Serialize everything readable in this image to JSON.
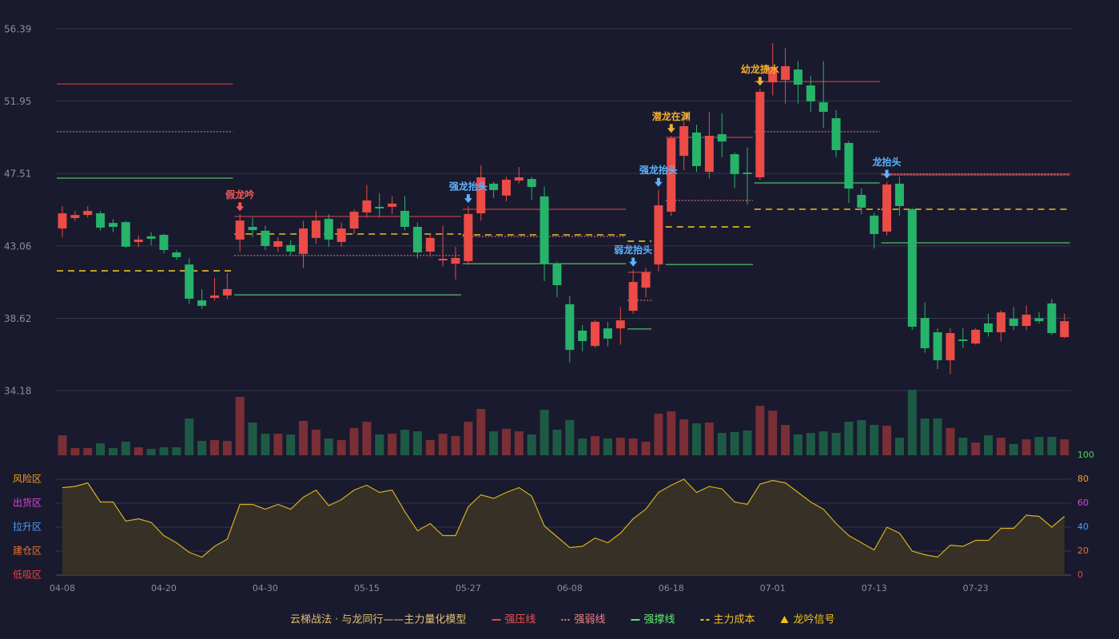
{
  "chart_data": [
    {
      "type": "candlestick",
      "ylim": [
        34.18,
        56.39
      ],
      "yticks": [
        56.39,
        51.95,
        47.51,
        43.06,
        38.62,
        34.18
      ],
      "grid": true,
      "up_color": "#ec4b46",
      "down_color": "#26b36a",
      "open": [
        44.13,
        44.77,
        44.96,
        45.06,
        44.47,
        44.52,
        43.3,
        43.65,
        43.74,
        42.66,
        41.92,
        39.72,
        39.87,
        40.02,
        43.45,
        44.23,
        43.99,
        43.01,
        43.11,
        42.57,
        43.55,
        44.72,
        43.3,
        44.13,
        45.12,
        45.46,
        45.46,
        45.21,
        44.23,
        42.71,
        42.17,
        41.97,
        42.12,
        45.06,
        46.88,
        46.15,
        47.07,
        47.17,
        46.1,
        41.97,
        39.48,
        37.86,
        36.92,
        38.0,
        38.0,
        39.08,
        40.5,
        41.92,
        45.16,
        48.59,
        50.02,
        47.61,
        49.92,
        48.69,
        47.56,
        47.27,
        53.1,
        53.25,
        53.89,
        52.91,
        51.88,
        50.9,
        49.38,
        46.19,
        44.92,
        43.94,
        46.88,
        45.31,
        38.64,
        37.76,
        36.04,
        37.32,
        37.07,
        38.3,
        37.76,
        38.59,
        38.15,
        38.62,
        39.53,
        37.46
      ],
      "high": [
        45.51,
        45.2,
        45.5,
        45.2,
        44.7,
        44.6,
        43.7,
        43.9,
        43.8,
        42.8,
        42.3,
        40.4,
        41.1,
        41.4,
        45.0,
        44.8,
        44.3,
        43.6,
        43.4,
        44.6,
        45.2,
        45.0,
        44.5,
        45.3,
        46.8,
        46.3,
        46.1,
        46.1,
        44.5,
        43.8,
        44.3,
        43.0,
        45.5,
        48.0,
        47.0,
        47.3,
        47.9,
        47.3,
        46.7,
        42.1,
        40.0,
        38.2,
        38.5,
        38.4,
        39.3,
        41.6,
        41.7,
        46.5,
        49.8,
        50.7,
        50.5,
        51.3,
        51.2,
        48.8,
        49.1,
        52.7,
        55.5,
        55.2,
        54.4,
        53.5,
        54.4,
        51.4,
        49.5,
        46.6,
        45.1,
        47.0,
        47.3,
        45.4,
        39.6,
        38.0,
        38.0,
        38.0,
        38.0,
        38.9,
        39.1,
        39.3,
        39.4,
        39.0,
        39.8,
        38.9
      ],
      "low": [
        43.59,
        44.6,
        44.8,
        44.0,
        43.9,
        42.95,
        43.0,
        43.1,
        42.6,
        42.2,
        39.5,
        39.2,
        39.7,
        39.8,
        42.7,
        43.6,
        42.8,
        42.7,
        42.5,
        41.7,
        43.2,
        43.0,
        43.0,
        43.8,
        44.8,
        44.8,
        45.0,
        44.0,
        42.3,
        42.4,
        41.8,
        41.0,
        41.9,
        44.6,
        46.0,
        45.8,
        46.9,
        45.9,
        40.9,
        39.9,
        35.9,
        36.6,
        36.8,
        36.9,
        37.0,
        38.9,
        39.9,
        41.5,
        44.9,
        47.7,
        47.6,
        47.2,
        48.5,
        46.6,
        45.6,
        47.1,
        52.3,
        51.8,
        51.8,
        51.3,
        50.3,
        48.5,
        45.7,
        45.0,
        42.9,
        43.7,
        44.9,
        37.9,
        36.5,
        35.5,
        35.2,
        36.8,
        37.0,
        37.5,
        37.2,
        37.9,
        37.9,
        38.3,
        37.6,
        37.4
      ],
      "close": [
        45.06,
        44.96,
        45.21,
        44.18,
        44.23,
        43.01,
        43.45,
        43.5,
        42.81,
        42.37,
        39.82,
        39.38,
        40.02,
        40.41,
        44.62,
        44.03,
        43.06,
        43.35,
        42.71,
        44.13,
        44.62,
        43.45,
        44.13,
        45.16,
        45.85,
        45.36,
        45.66,
        44.23,
        42.66,
        43.55,
        42.27,
        42.32,
        45.02,
        47.27,
        46.49,
        47.12,
        47.27,
        46.68,
        41.97,
        40.65,
        36.68,
        37.22,
        38.4,
        37.37,
        38.49,
        40.85,
        41.44,
        45.55,
        49.67,
        50.41,
        47.96,
        49.82,
        49.47,
        47.47,
        47.47,
        52.52,
        54.04,
        54.09,
        52.96,
        51.93,
        51.29,
        48.94,
        46.58,
        45.41,
        43.79,
        46.83,
        45.51,
        38.1,
        36.78,
        36.04,
        37.71,
        37.22,
        37.91,
        37.76,
        38.98,
        38.15,
        38.84,
        38.44,
        37.71,
        38.44
      ],
      "levels": [
        {
          "name": "强压线",
          "color": "#e04848",
          "text_color": "#f05050",
          "style": "solid",
          "segments": [
            {
              "start": 0,
              "end": 13,
              "value": 53.0
            },
            {
              "start": 14,
              "end": 31,
              "value": 44.87
            },
            {
              "start": 32,
              "end": 44,
              "value": 45.31
            },
            {
              "start": 45,
              "end": 46,
              "value": 41.44
            },
            {
              "start": 48,
              "end": 54,
              "value": 49.72
            },
            {
              "start": 55,
              "end": 64,
              "value": 53.15
            },
            {
              "start": 65,
              "end": 79,
              "value": 47.42
            }
          ]
        },
        {
          "name": "强弱线",
          "color": "#f08080",
          "text_color": "#f08080",
          "style": "dotted",
          "segments": [
            {
              "start": 0,
              "end": 13,
              "value": 50.07
            },
            {
              "start": 14,
              "end": 31,
              "value": 42.47
            },
            {
              "start": 32,
              "end": 44,
              "value": 43.64
            },
            {
              "start": 45,
              "end": 46,
              "value": 39.72
            },
            {
              "start": 48,
              "end": 54,
              "value": 45.85
            },
            {
              "start": 55,
              "end": 64,
              "value": 50.07
            },
            {
              "start": 65,
              "end": 79,
              "value": 47.47
            }
          ]
        },
        {
          "name": "强撑线",
          "color": "#5be870",
          "text_color": "#60f070",
          "style": "solid",
          "segments": [
            {
              "start": 0,
              "end": 13,
              "value": 47.22
            },
            {
              "start": 14,
              "end": 31,
              "value": 40.06
            },
            {
              "start": 32,
              "end": 44,
              "value": 41.97
            },
            {
              "start": 45,
              "end": 46,
              "value": 37.96
            },
            {
              "start": 48,
              "end": 54,
              "value": 41.92
            },
            {
              "start": 55,
              "end": 64,
              "value": 46.93
            },
            {
              "start": 65,
              "end": 79,
              "value": 43.25
            }
          ]
        },
        {
          "name": "主力成本",
          "color": "#e8c020",
          "text_color": "#f0c020",
          "style": "dashed",
          "segments": [
            {
              "start": 0,
              "end": 13,
              "value": 41.53
            },
            {
              "start": 14,
              "end": 31,
              "value": 43.79
            },
            {
              "start": 32,
              "end": 44,
              "value": 43.74
            },
            {
              "start": 45,
              "end": 46,
              "value": 43.35
            },
            {
              "start": 48,
              "end": 54,
              "value": 44.23
            },
            {
              "start": 55,
              "end": 64,
              "value": 45.31
            },
            {
              "start": 65,
              "end": 79,
              "value": 45.31
            }
          ]
        }
      ],
      "annotations": [
        {
          "text": "假龙吟",
          "index": 14,
          "color": "#f05a5a"
        },
        {
          "text": "强龙抬头",
          "index": 32,
          "color": "#5ab4ff"
        },
        {
          "text": "弱龙抬头",
          "index": 45,
          "color": "#5ab4ff"
        },
        {
          "text": "强龙抬头",
          "index": 47,
          "color": "#5ab4ff"
        },
        {
          "text": "潜龙在渊",
          "index": 48,
          "color": "#f0b030"
        },
        {
          "text": "幼龙捷水",
          "index": 55,
          "color": "#f0b030"
        },
        {
          "text": "龙抬头",
          "index": 65,
          "color": "#5ab4ff"
        }
      ],
      "legend_title": "云梯战法 · 与龙同行——主力量化模型",
      "signal_label": "龙吟信号",
      "signal_color": "#f0c020"
    },
    {
      "type": "bar",
      "values": [
        25,
        9,
        9,
        15,
        9,
        17,
        10,
        8,
        10,
        10,
        46,
        18,
        19,
        18,
        73,
        41,
        27,
        27,
        26,
        43,
        32,
        21,
        19,
        34,
        42,
        26,
        27,
        32,
        30,
        19,
        27,
        24,
        42,
        58,
        30,
        33,
        30,
        26,
        57,
        32,
        44,
        21,
        24,
        21,
        22,
        21,
        17,
        52,
        55,
        45,
        40,
        41,
        28,
        29,
        31,
        62,
        56,
        38,
        26,
        28,
        30,
        28,
        42,
        44,
        38,
        37,
        22,
        82,
        46,
        46,
        34,
        22,
        16,
        25,
        22,
        14,
        20,
        23,
        23,
        20
      ],
      "up_color": "#7a2e35",
      "down_color": "#1d5a45"
    },
    {
      "type": "line",
      "categories": [
        "04-08",
        null,
        null,
        null,
        null,
        null,
        null,
        null,
        "04-20",
        null,
        null,
        null,
        null,
        null,
        null,
        null,
        "04-30",
        null,
        null,
        null,
        null,
        null,
        null,
        null,
        "05-15",
        null,
        null,
        null,
        null,
        null,
        null,
        null,
        "05-27",
        null,
        null,
        null,
        null,
        null,
        null,
        null,
        "06-08",
        null,
        null,
        null,
        null,
        null,
        null,
        null,
        "06-18",
        null,
        null,
        null,
        null,
        null,
        null,
        null,
        "07-01",
        null,
        null,
        null,
        null,
        null,
        null,
        null,
        "07-13",
        null,
        null,
        null,
        null,
        null,
        null,
        null,
        "07-23",
        null,
        null,
        null,
        null,
        null,
        null,
        null
      ],
      "values": [
        73,
        74,
        77,
        61,
        61,
        45,
        47,
        44,
        33,
        27,
        19,
        15,
        24,
        30,
        59,
        59,
        55,
        59,
        55,
        65,
        71,
        58,
        63,
        71,
        75,
        69,
        71,
        53,
        37,
        43,
        33,
        33,
        57,
        67,
        64,
        69,
        73,
        66,
        41,
        32,
        23,
        24,
        31,
        27,
        35,
        47,
        55,
        69,
        75,
        80,
        69,
        74,
        72,
        61,
        59,
        76,
        79,
        77,
        69,
        61,
        55,
        43,
        33,
        27,
        21,
        40,
        35,
        20,
        17,
        15,
        25,
        24,
        29,
        29,
        39,
        39,
        50,
        49,
        40,
        49
      ],
      "ylim": [
        0,
        100
      ],
      "yticks": [
        0,
        20,
        40,
        60,
        80,
        100
      ],
      "tick_colors": [
        "#f04040",
        "#f07030",
        "#4aa0ff",
        "#e040e0",
        "#f0a020",
        "#40e040"
      ],
      "zones": [
        {
          "value": 80,
          "label": "风险区",
          "color": "#f0a020"
        },
        {
          "value": 60,
          "label": "出货区",
          "color": "#e040e0"
        },
        {
          "value": 40,
          "label": "拉升区",
          "color": "#4aa0ff"
        },
        {
          "value": 20,
          "label": "建仓区",
          "color": "#f07030"
        },
        {
          "value": 0,
          "label": "低吸区",
          "color": "#f04040"
        }
      ],
      "color": "#d4b020",
      "fill": "#3a3326",
      "grid": true
    }
  ]
}
